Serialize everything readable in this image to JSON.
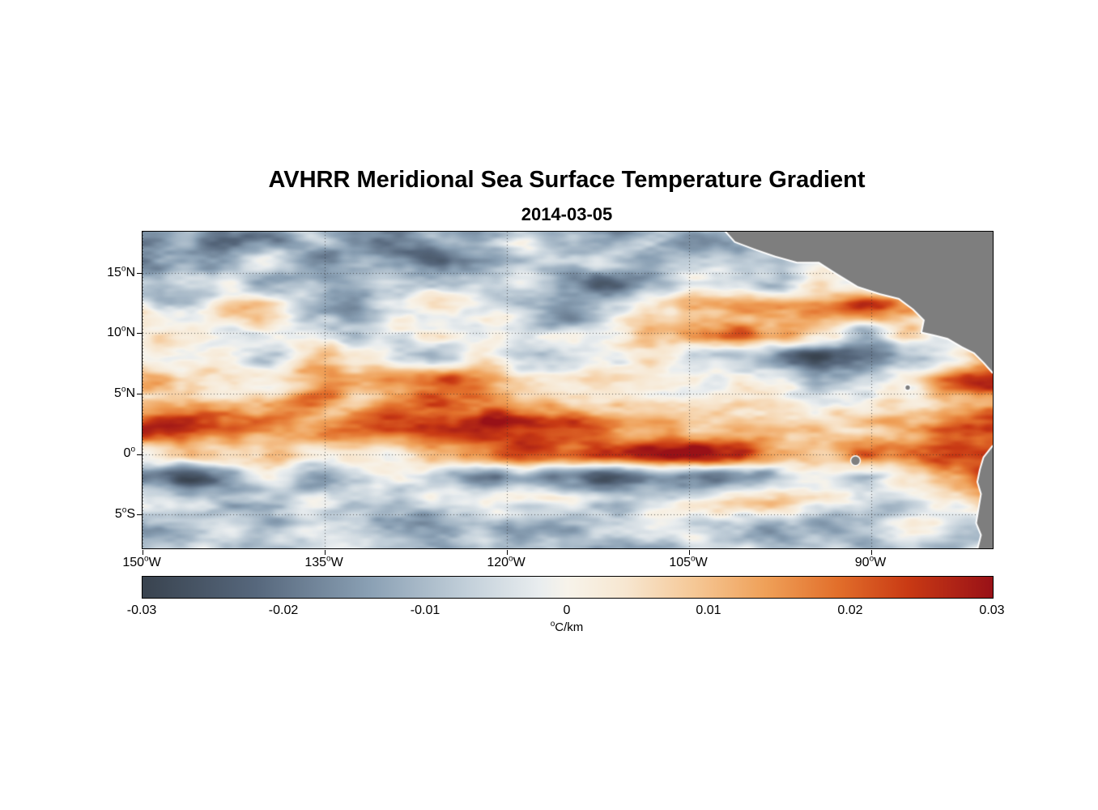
{
  "header": {
    "title": "AVHRR Meridional Sea Surface Temperature Gradient",
    "date": "2014-03-05"
  },
  "axes": {
    "deg": "o",
    "lat_ticks": [
      {
        "num": "15",
        "hem": "N",
        "lat": 15
      },
      {
        "num": "10",
        "hem": "N",
        "lat": 10
      },
      {
        "num": "5",
        "hem": "N",
        "lat": 5
      },
      {
        "num": "0",
        "hem": "",
        "lat": 0
      },
      {
        "num": "5",
        "hem": "S",
        "lat": -5
      }
    ],
    "lon_ticks": [
      {
        "num": "150",
        "hem": "W",
        "lon": -150
      },
      {
        "num": "135",
        "hem": "W",
        "lon": -135
      },
      {
        "num": "120",
        "hem": "W",
        "lon": -120
      },
      {
        "num": "105",
        "hem": "W",
        "lon": -105
      },
      {
        "num": "90",
        "hem": "W",
        "lon": -90
      }
    ]
  },
  "colorbar": {
    "ticks": [
      "-0.03",
      "-0.02",
      "-0.01",
      "0",
      "0.01",
      "0.02",
      "0.03"
    ],
    "unit_deg": "o",
    "unit_text": "C/km"
  },
  "chart_data": {
    "type": "heatmap",
    "title": "AVHRR Meridional Sea Surface Temperature Gradient",
    "date": "2014-03-05",
    "units": "degC/km",
    "lon_range": [
      -150,
      -80
    ],
    "lat_range": [
      -7.8,
      18.4
    ],
    "value_range": [
      -0.03,
      0.03
    ],
    "value_ticks": [
      -0.03,
      -0.02,
      -0.01,
      0,
      0.01,
      0.02,
      0.03
    ],
    "gridlines": {
      "lat": [
        15,
        10,
        5,
        0,
        -5
      ],
      "lon": [
        -150,
        -135,
        -120,
        -105,
        -90
      ],
      "color": "rgba(45,45,45,0.75)",
      "dash": [
        1,
        3
      ]
    },
    "colormap": [
      {
        "v": -0.03,
        "c": "#39434f"
      },
      {
        "v": -0.022,
        "c": "#56677c"
      },
      {
        "v": -0.014,
        "c": "#8aa0b4"
      },
      {
        "v": -0.007,
        "c": "#c3d0da"
      },
      {
        "v": -0.002,
        "c": "#e9edef"
      },
      {
        "v": 0.0,
        "c": "#f7f3ea"
      },
      {
        "v": 0.004,
        "c": "#f7e7d1"
      },
      {
        "v": 0.009,
        "c": "#f5c795"
      },
      {
        "v": 0.014,
        "c": "#efa058"
      },
      {
        "v": 0.019,
        "c": "#e26f2b"
      },
      {
        "v": 0.024,
        "c": "#c93a14"
      },
      {
        "v": 0.03,
        "c": "#991117"
      }
    ],
    "grid": {
      "lons": [
        -150,
        -146.5,
        -143,
        -139.5,
        -136,
        -132.5,
        -129,
        -125.5,
        -122,
        -118.5,
        -115,
        -111.5,
        -108,
        -104.5,
        -101,
        -97.5,
        -94,
        -90.5,
        -87,
        -83.5,
        -80
      ],
      "lats": [
        18,
        16,
        14,
        12,
        10,
        8,
        6,
        4,
        2,
        0,
        -2,
        -4,
        -6,
        -8
      ],
      "values": [
        [
          -0.018,
          -0.01,
          -0.02,
          -0.014,
          -0.006,
          -0.016,
          -0.02,
          -0.01,
          -0.016,
          -0.008,
          -0.014,
          -0.018,
          -0.008,
          -0.012,
          -0.01,
          0,
          0,
          0,
          0,
          0,
          0
        ],
        [
          -0.02,
          -0.008,
          -0.014,
          -0.006,
          -0.016,
          -0.01,
          -0.018,
          -0.022,
          -0.012,
          -0.006,
          -0.014,
          -0.008,
          -0.016,
          -0.006,
          -0.01,
          -0.012,
          0,
          0,
          0,
          0,
          0
        ],
        [
          -0.004,
          -0.008,
          -0.002,
          -0.01,
          -0.004,
          -0.012,
          -0.006,
          -0.002,
          -0.008,
          -0.004,
          -0.014,
          -0.02,
          -0.008,
          -0.002,
          -0.008,
          -0.014,
          0,
          0,
          0,
          0,
          0
        ],
        [
          0.002,
          -0.004,
          0.008,
          0.004,
          -0.01,
          -0.016,
          -0.006,
          0.002,
          -0.004,
          -0.008,
          -0.012,
          -0.004,
          0.002,
          0.008,
          0.014,
          0.016,
          0.018,
          0.026,
          0.016,
          0,
          0
        ],
        [
          -0.002,
          0.004,
          -0.006,
          0.002,
          -0.004,
          -0.01,
          -0.002,
          0.004,
          -0.006,
          -0.01,
          -0.006,
          -0.002,
          0.006,
          0.012,
          0.018,
          0.012,
          0.004,
          -0.01,
          0.008,
          0.0,
          0.0
        ],
        [
          0.002,
          -0.004,
          0.004,
          -0.002,
          0.006,
          0.002,
          -0.004,
          -0.008,
          0.002,
          -0.01,
          -0.012,
          -0.006,
          0.002,
          -0.004,
          -0.01,
          -0.018,
          -0.024,
          -0.026,
          -0.012,
          0.0,
          0.012
        ],
        [
          0.016,
          0.01,
          0.004,
          0.002,
          0.006,
          0.01,
          0.017,
          0.018,
          0.014,
          0.004,
          0.002,
          0.004,
          0.0,
          -0.004,
          0.002,
          0.004,
          -0.004,
          -0.008,
          0.002,
          0.018,
          0.026
        ],
        [
          0.01,
          0.014,
          0.008,
          0.012,
          0.016,
          0.008,
          0.014,
          0.022,
          0.018,
          0.012,
          0.012,
          0.008,
          0.004,
          0.0,
          0.004,
          0.006,
          0.002,
          -0.002,
          0.004,
          0.01,
          0.014
        ],
        [
          0.022,
          0.026,
          0.024,
          0.018,
          0.018,
          0.02,
          0.024,
          0.026,
          0.028,
          0.024,
          0.022,
          0.02,
          0.012,
          0.004,
          0.008,
          0.006,
          0.004,
          0.008,
          0.014,
          0.022,
          0.024
        ],
        [
          0.004,
          0.006,
          0.002,
          0.008,
          0.004,
          0.008,
          0.006,
          0.01,
          0.016,
          0.024,
          0.016,
          0.02,
          0.026,
          0.028,
          0.024,
          0.012,
          0.006,
          0.022,
          0.018,
          0.024,
          0.028
        ],
        [
          -0.016,
          -0.022,
          -0.012,
          -0.006,
          -0.016,
          -0.008,
          -0.004,
          -0.014,
          -0.02,
          -0.008,
          -0.016,
          -0.022,
          -0.012,
          -0.02,
          -0.014,
          -0.008,
          -0.004,
          -0.01,
          0.002,
          0.012,
          0.02
        ],
        [
          -0.006,
          -0.002,
          -0.008,
          -0.004,
          0.0,
          -0.006,
          -0.01,
          -0.004,
          0.0,
          -0.006,
          -0.002,
          -0.008,
          -0.004,
          0.0,
          0.008,
          0.01,
          -0.002,
          -0.008,
          -0.012,
          -0.004,
          0.01
        ],
        [
          -0.01,
          -0.014,
          -0.006,
          -0.012,
          -0.004,
          -0.008,
          -0.014,
          -0.01,
          -0.004,
          -0.01,
          -0.014,
          -0.006,
          -0.002,
          -0.008,
          -0.004,
          -0.012,
          -0.016,
          -0.008,
          -0.004,
          -0.01,
          -0.006
        ],
        [
          -0.004,
          -0.008,
          -0.012,
          -0.004,
          -0.008,
          -0.002,
          -0.006,
          -0.01,
          -0.002,
          -0.008,
          -0.004,
          -0.01,
          -0.006,
          -0.002,
          -0.008,
          -0.012,
          -0.006,
          -0.01,
          -0.004,
          -0.008,
          -0.004
        ]
      ]
    },
    "noise": {
      "octaves": [
        {
          "amp": 0.0062,
          "sx": 5.0,
          "sy": 1.6,
          "ox": 0.0,
          "oy": 0.0
        },
        {
          "amp": 0.0038,
          "sx": 2.0,
          "sy": 0.7,
          "ox": 7.3,
          "oy": 3.1
        },
        {
          "amp": 0.0016,
          "sx": 0.9,
          "sy": 0.35,
          "ox": 2.2,
          "oy": 9.4
        }
      ]
    },
    "land": {
      "color": "#7e7e7e",
      "halo": "#ffffff",
      "polygons": [
        {
          "coast": [
            [
              -102.0,
              18.5
            ],
            [
              -101.2,
              17.6
            ],
            [
              -99.6,
              17.0
            ],
            [
              -97.9,
              16.4
            ],
            [
              -96.1,
              15.9
            ],
            [
              -94.3,
              15.9
            ],
            [
              -92.9,
              15.0
            ],
            [
              -91.1,
              13.9
            ],
            [
              -89.3,
              13.3
            ],
            [
              -87.7,
              12.9
            ],
            [
              -86.5,
              12.0
            ],
            [
              -85.6,
              11.1
            ],
            [
              -85.8,
              10.1
            ],
            [
              -84.9,
              9.9
            ],
            [
              -83.7,
              9.6
            ],
            [
              -82.5,
              8.9
            ],
            [
              -81.5,
              8.4
            ],
            [
              -80.7,
              7.6
            ],
            [
              -80.0,
              6.8
            ]
          ],
          "close": [
            [
              -80.0,
              18.5
            ]
          ]
        },
        {
          "coast": [
            [
              -80.0,
              0.6
            ],
            [
              -80.7,
              -0.3
            ],
            [
              -81.0,
              -1.3
            ],
            [
              -81.2,
              -2.3
            ],
            [
              -80.9,
              -3.3
            ],
            [
              -81.1,
              -4.5
            ],
            [
              -81.3,
              -5.7
            ],
            [
              -80.9,
              -6.7
            ],
            [
              -81.2,
              -7.9
            ]
          ],
          "close": [
            [
              -80.0,
              -7.9
            ]
          ]
        }
      ],
      "islands": [
        {
          "lon": -91.3,
          "lat": -0.55,
          "r_deg": 0.35
        },
        {
          "lon": -87.0,
          "lat": 5.5,
          "r_deg": 0.18
        }
      ]
    }
  }
}
